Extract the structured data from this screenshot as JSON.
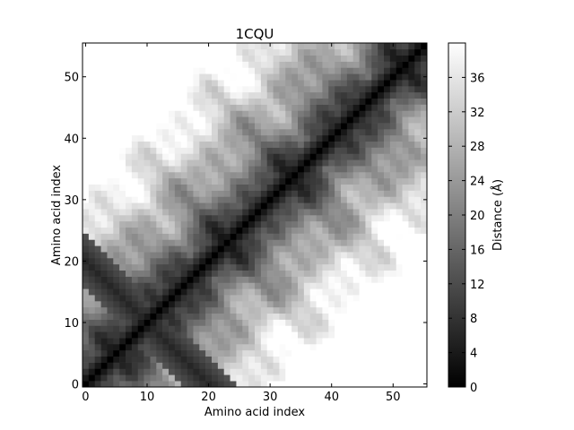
{
  "chart_data": {
    "type": "heatmap",
    "title": "1CQU",
    "xlabel": "Amino acid index",
    "ylabel": "Amino acid index",
    "n_residues": 56,
    "x_ticks": [
      0,
      10,
      20,
      30,
      40,
      50
    ],
    "y_ticks": [
      0,
      10,
      20,
      30,
      40,
      50
    ],
    "xlim": [
      -0.5,
      55.5
    ],
    "ylim": [
      -0.5,
      55.5
    ],
    "origin": "lower",
    "colormap": "gray",
    "colorbar": {
      "label": "Distance (Å)",
      "range": [
        0,
        40
      ],
      "ticks": [
        0,
        4,
        8,
        12,
        16,
        20,
        24,
        28,
        32,
        36
      ]
    },
    "values": "symmetric 56×56 inter-residue Cα distance matrix (Å): 0 on the diagonal, about 4–10 along the main and anti-diagonal (crossing near residue 10) bands, up to about 40 far from the diagonal"
  }
}
